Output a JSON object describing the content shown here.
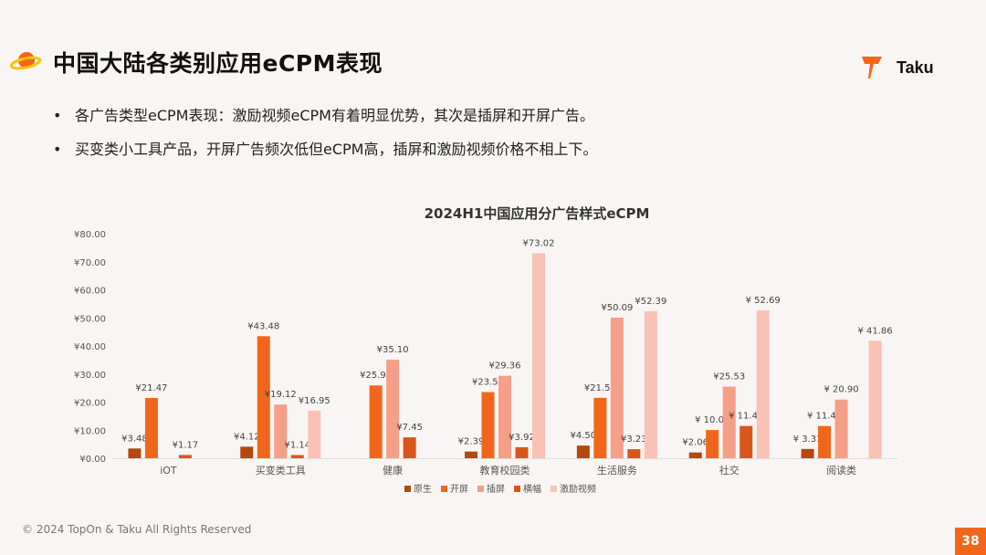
{
  "header": {
    "title": "中国大陆各类别应用eCPM表现",
    "logo_text": "Taku"
  },
  "bullets": [
    "各广告类型eCPM表现：激励视频eCPM有着明显优势，其次是插屏和开屏广告。",
    "买变类小工具产品，开屏广告频次低但eCPM高，插屏和激励视频价格不相上下。"
  ],
  "chart_data": {
    "type": "bar",
    "title": "2024H1中国应用分广告样式eCPM",
    "categories": [
      "iOT",
      "买变类工具",
      "健康",
      "教育校园类",
      "生活服务",
      "社交",
      "阅读类"
    ],
    "ylim": [
      0,
      80
    ],
    "yticks": [
      "¥0.00",
      "¥10.00",
      "¥20.00",
      "¥30.00",
      "¥40.00",
      "¥50.00",
      "¥60.00",
      "¥70.00",
      "¥80.00"
    ],
    "grid": false,
    "legend": "bottom",
    "series": [
      {
        "name": "原生",
        "color": "#B5470F",
        "values": [
          3.48,
          4.12,
          null,
          2.39,
          4.5,
          2.06,
          3.31
        ],
        "labels": [
          "¥3.48",
          "¥4.12",
          null,
          "¥2.39",
          "¥4.50",
          "¥2.06",
          "¥ 3.31"
        ]
      },
      {
        "name": "开屏",
        "color": "#F2661C",
        "values": [
          21.47,
          43.48,
          25.94,
          23.57,
          21.51,
          10.05,
          11.47
        ],
        "labels": [
          "¥21.47",
          "¥43.48",
          "¥25.94",
          "¥23.57",
          "¥21.51",
          "¥ 10.05",
          "¥ 11.47"
        ]
      },
      {
        "name": "插屏",
        "color": "#F59E88",
        "values": [
          null,
          19.12,
          35.1,
          29.36,
          50.09,
          25.53,
          20.9
        ],
        "labels": [
          null,
          "¥19.12",
          "¥35.10",
          "¥29.36",
          "¥50.09",
          "¥25.53",
          "¥ 20.90"
        ]
      },
      {
        "name": "横幅",
        "color": "#D9561A",
        "values": [
          1.17,
          1.14,
          7.45,
          3.92,
          3.23,
          11.49,
          null
        ],
        "labels": [
          "¥1.17",
          "¥1.14",
          "¥7.45",
          "¥3.92",
          "¥3.23",
          "¥ 11.49",
          null
        ]
      },
      {
        "name": "激励视频",
        "color": "#F9C2B6",
        "values": [
          null,
          16.95,
          null,
          73.02,
          52.39,
          52.69,
          41.86
        ],
        "labels": [
          null,
          "¥16.95",
          null,
          "¥73.02",
          "¥52.39",
          "¥ 52.69",
          "¥ 41.86"
        ]
      }
    ]
  },
  "footer": {
    "copyright": "© 2024 TopOn & Taku All Rights Reserved",
    "page_number": "38"
  },
  "colors": {
    "accent": "#F2661C",
    "background": "#F8F5F4"
  }
}
